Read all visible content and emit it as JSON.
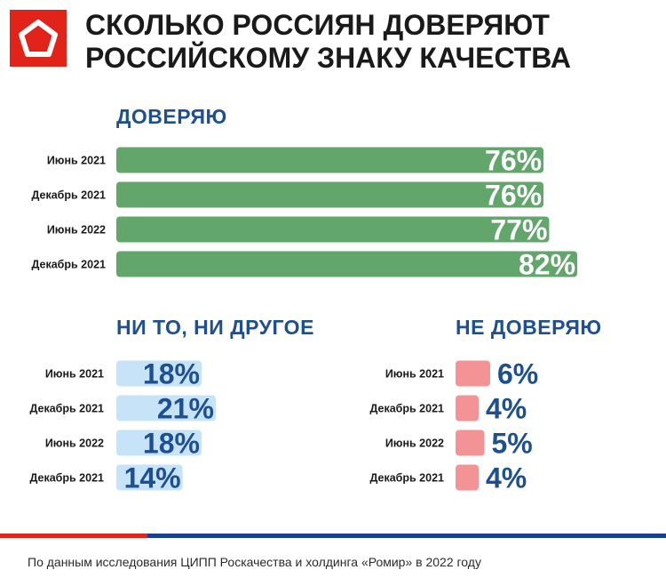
{
  "title_line1": "СКОЛЬКО РОССИЯН ДОВЕРЯЮТ",
  "title_line2": "РОССИЙСКОМУ ЗНАКУ КАЧЕСТВА",
  "colors": {
    "trust": "#62a66b",
    "neutral": "#c7e3f7",
    "distrust": "#f39396",
    "accent_blue": "#1d4f91",
    "logo_red": "#e2231a",
    "line_red": "#e2231a",
    "line_blue": "#1c3f94"
  },
  "chart_data": [
    {
      "type": "bar",
      "orientation": "horizontal",
      "title": "ДОВЕРЯЮ",
      "categories": [
        "Июнь 2021",
        "Декабрь 2021",
        "Июнь 2022",
        "Декабрь 2021"
      ],
      "values": [
        76,
        76,
        77,
        82
      ],
      "value_labels": [
        "76%",
        "76%",
        "77%",
        "82%"
      ],
      "unit": "%"
    },
    {
      "type": "bar",
      "orientation": "horizontal",
      "title": "НИ ТО, НИ ДРУГОЕ",
      "categories": [
        "Июнь 2021",
        "Декабрь 2021",
        "Июнь 2022",
        "Декабрь 2021"
      ],
      "values": [
        18,
        21,
        18,
        14
      ],
      "value_labels": [
        "18%",
        "21%",
        "18%",
        "14%"
      ],
      "unit": "%"
    },
    {
      "type": "bar",
      "orientation": "horizontal",
      "title": "НЕ ДОВЕРЯЮ",
      "categories": [
        "Июнь 2021",
        "Декабрь 2021",
        "Июнь 2022",
        "Декабрь 2021"
      ],
      "values": [
        6,
        4,
        5,
        4
      ],
      "value_labels": [
        "6%",
        "4%",
        "5%",
        "4%"
      ],
      "unit": "%"
    }
  ],
  "source": "По данным исследования ЦИПП Роскачества и холдинга «Ромир» в 2022 году"
}
